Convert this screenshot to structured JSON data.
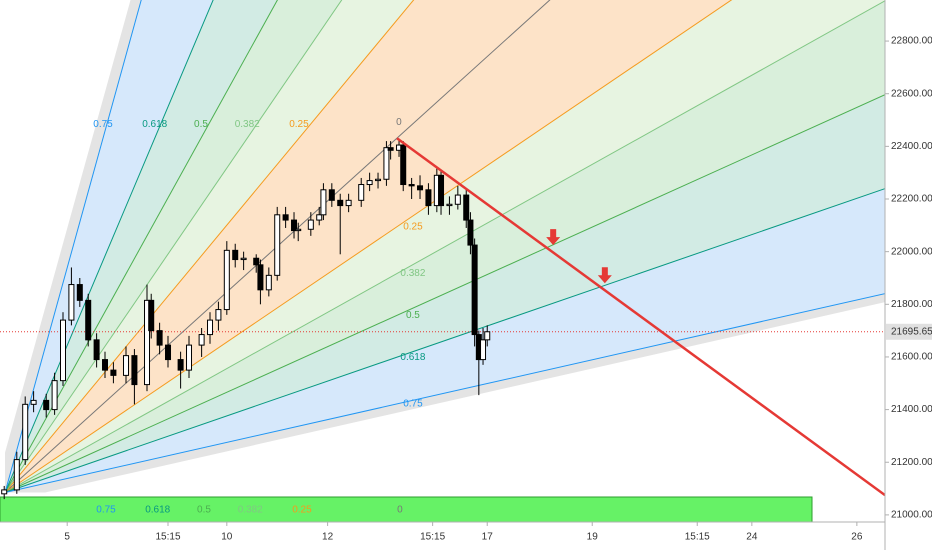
{
  "chart_data": {
    "type": "candlestick",
    "xlim": [
      0,
      210.7
    ],
    "ylim": [
      20973,
      22956
    ],
    "xticks": [
      {
        "value": 16,
        "label": "5"
      },
      {
        "value": 40,
        "label": "15:15"
      },
      {
        "value": 54,
        "label": "10"
      },
      {
        "value": 78,
        "label": "12"
      },
      {
        "value": 103,
        "label": "15:15"
      },
      {
        "value": 116,
        "label": "17"
      },
      {
        "value": 141,
        "label": "19"
      },
      {
        "value": 166,
        "label": "15:15"
      },
      {
        "value": 179,
        "label": "24"
      },
      {
        "value": 204,
        "label": "26"
      }
    ],
    "yticks": [
      {
        "value": 21000,
        "label": "21000.00"
      },
      {
        "value": 21200,
        "label": "21200.00"
      },
      {
        "value": 21400,
        "label": "21400.00"
      },
      {
        "value": 21600,
        "label": "21600.00"
      },
      {
        "value": 21800,
        "label": "21800.00"
      },
      {
        "value": 22000,
        "label": "22000.00"
      },
      {
        "value": 22200,
        "label": "22200.00"
      },
      {
        "value": 22400,
        "label": "22400.00"
      },
      {
        "value": 22600,
        "label": "22600.00"
      },
      {
        "value": 22800,
        "label": "22800.00"
      }
    ],
    "up_color": "#ffffff",
    "down_color": "#000000",
    "x": [
      1,
      4,
      6,
      8,
      11,
      13,
      15,
      17,
      19,
      21,
      23,
      25,
      27,
      30,
      32,
      35,
      36,
      38,
      40,
      43,
      45,
      48,
      50,
      52,
      54,
      56,
      58,
      61,
      62,
      64,
      66,
      68,
      70,
      71,
      74,
      76,
      77,
      79,
      81,
      83,
      86,
      88,
      90,
      92,
      93,
      95,
      96,
      98,
      100,
      102,
      104,
      105,
      107,
      109,
      111,
      112,
      113,
      114,
      115,
      116
    ],
    "open": [
      21080,
      21095,
      21210,
      21420,
      21435,
      21400,
      21510,
      21740,
      21875,
      21815,
      21665,
      21590,
      21550,
      21530,
      21605,
      21495,
      21815,
      21700,
      21645,
      21590,
      21550,
      21645,
      21685,
      21740,
      21780,
      22005,
      21970,
      21975,
      21950,
      21855,
      21910,
      22140,
      22120,
      22080,
      22085,
      22120,
      22140,
      22235,
      22195,
      22175,
      22195,
      22255,
      22270,
      22275,
      22395,
      22385,
      22405,
      22255,
      22250,
      22235,
      22175,
      22290,
      22175,
      22180,
      22215,
      22120,
      22025,
      21685,
      21590,
      21665
    ],
    "high": [
      21110,
      21240,
      21450,
      21470,
      21460,
      21540,
      21770,
      21940,
      21900,
      21840,
      21690,
      21620,
      21580,
      21640,
      21630,
      21875,
      21840,
      21730,
      21680,
      21620,
      21680,
      21710,
      21770,
      21810,
      22040,
      22030,
      22000,
      21990,
      21970,
      21940,
      22170,
      22170,
      22150,
      22110,
      22150,
      22170,
      22260,
      22260,
      22220,
      22220,
      22280,
      22300,
      22300,
      22420,
      22420,
      22430,
      22420,
      22280,
      22290,
      22260,
      22320,
      22310,
      22210,
      22250,
      22240,
      22150,
      22050,
      21700,
      21710,
      21720
    ],
    "low": [
      21060,
      21080,
      21190,
      21390,
      21370,
      21380,
      21490,
      21720,
      21790,
      21640,
      21560,
      21520,
      21500,
      21500,
      21420,
      21470,
      21670,
      21610,
      21560,
      21480,
      21520,
      21600,
      21650,
      21700,
      21760,
      21940,
      21930,
      21920,
      21800,
      21830,
      21890,
      22090,
      22050,
      22040,
      22060,
      22100,
      22120,
      22170,
      21990,
      22150,
      22170,
      22230,
      22240,
      22250,
      22350,
      22360,
      22230,
      22200,
      22200,
      22140,
      22150,
      22140,
      22140,
      22160,
      22090,
      21990,
      21640,
      21455,
      21570,
      21640
    ],
    "close": [
      21095,
      21210,
      21420,
      21435,
      21400,
      21510,
      21740,
      21875,
      21815,
      21665,
      21590,
      21550,
      21530,
      21605,
      21495,
      21815,
      21700,
      21645,
      21590,
      21550,
      21645,
      21685,
      21740,
      21780,
      22005,
      21970,
      21975,
      21950,
      21855,
      21910,
      22140,
      22120,
      22080,
      22085,
      22120,
      22140,
      22235,
      22195,
      22175,
      22195,
      22255,
      22270,
      22275,
      22395,
      22385,
      22405,
      22255,
      22250,
      22235,
      22175,
      22290,
      22175,
      22180,
      22215,
      22120,
      22025,
      21685,
      21590,
      21665,
      21695.65
    ],
    "last_price": 21695.65,
    "last_price_color": "#e53935",
    "fan": {
      "origin": [
        1.2,
        21085
      ],
      "end": [
        94.5,
        22431
      ],
      "levels": [
        0,
        0.25,
        0.382,
        0.5,
        0.618,
        0.75
      ],
      "line_colors": [
        "#787878",
        "#f59b1f",
        "#81c784",
        "#4caf50",
        "#089981",
        "#2196f3"
      ],
      "fill_colors": [
        "#fde3c8",
        "#e7f4e1",
        "#d9efdb",
        "#d2ebe4",
        "#d6e8fb",
        "#e4e4e4"
      ],
      "strip_color": "#66f266"
    },
    "trend_line": {
      "x": [
        94.5,
        210.7
      ],
      "values": [
        22431,
        21075
      ],
      "color": "#e53935"
    },
    "arrows": {
      "x": [
        131.7,
        144
      ],
      "values": [
        22025,
        21880
      ],
      "color": "#e53935"
    }
  }
}
